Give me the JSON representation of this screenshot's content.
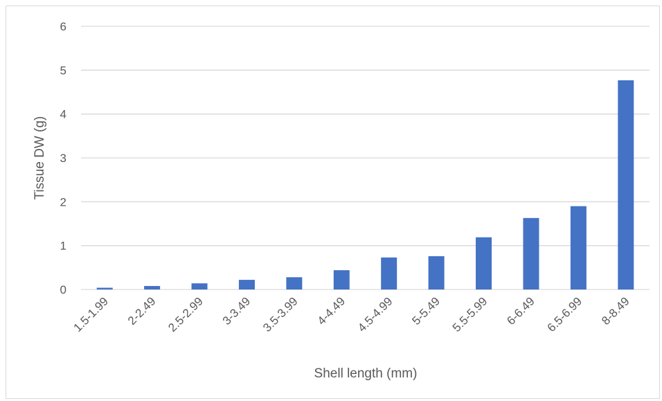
{
  "chart_data": {
    "type": "bar",
    "title": "",
    "xlabel": "Shell length (mm)",
    "ylabel": "Tissue DW (g)",
    "categories": [
      "1.5-1.99",
      "2-2.49",
      "2.5-2.99",
      "3-3.49",
      "3.5-3.99",
      "4-4.49",
      "4.5-4.99",
      "5-5.49",
      "5.5-5.99",
      "6-6.49",
      "6.5-6.99",
      "8-8.49"
    ],
    "values": [
      0.04,
      0.08,
      0.14,
      0.22,
      0.28,
      0.44,
      0.73,
      0.76,
      1.19,
      1.63,
      1.9,
      4.77
    ],
    "ylim": [
      0,
      6
    ],
    "yticks": [
      "0",
      "1",
      "2",
      "3",
      "4",
      "5",
      "6"
    ],
    "grid": true,
    "legend": "none",
    "colors": {
      "bar": "#4472c4",
      "grid": "#d9d9d9",
      "text": "#595959"
    }
  }
}
